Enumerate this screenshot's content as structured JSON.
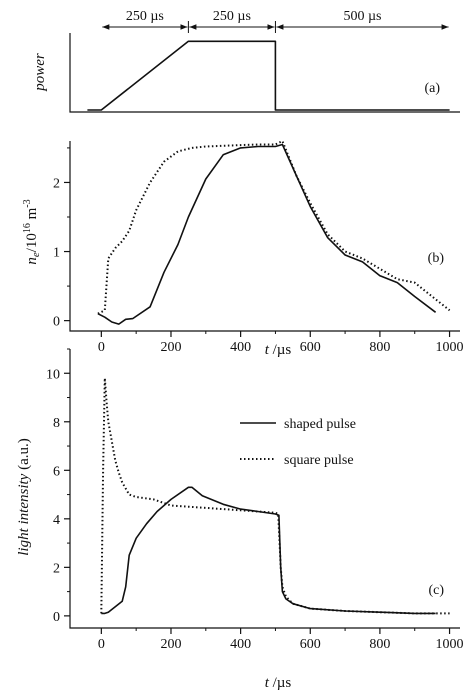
{
  "chart_data": [
    {
      "id": "a",
      "type": "line",
      "panel_label": "(a)",
      "ylabel": "power",
      "duration_labels": [
        "250 µs",
        "250 µs",
        "500 µs"
      ],
      "duration_boundaries_us": [
        0,
        250,
        500,
        1000
      ],
      "series": [
        {
          "style": "solid",
          "x": [
            -40,
            0,
            250,
            500,
            500,
            1000
          ],
          "y": [
            0,
            0,
            1,
            1,
            0,
            0
          ]
        }
      ],
      "ylim": [
        0,
        1.15
      ],
      "xlim": [
        -90,
        1030
      ]
    },
    {
      "id": "b",
      "type": "line",
      "panel_label": "(b)",
      "ylabel": "n",
      "ylabel_sub": "e",
      "ylabel_unit": "/10",
      "ylabel_exp": "16",
      "ylabel_tail": " m",
      "ylabel_tail_exp": "-3",
      "xlabel": "t",
      "xlabel_unit": " /µs",
      "x_ticks": [
        "0",
        "200",
        "400",
        "600",
        "800",
        "1000"
      ],
      "y_ticks": [
        "0",
        "1",
        "2"
      ],
      "xlim": [
        -90,
        1030
      ],
      "ylim": [
        -0.15,
        2.6
      ],
      "series": [
        {
          "style": "solid",
          "x": [
            -10,
            10,
            30,
            50,
            70,
            90,
            140,
            180,
            220,
            250,
            300,
            350,
            400,
            450,
            500,
            520,
            560,
            600,
            650,
            700,
            750,
            800,
            850,
            900,
            960
          ],
          "y": [
            0.1,
            0.05,
            -0.02,
            -0.05,
            0.02,
            0.03,
            0.2,
            0.7,
            1.1,
            1.5,
            2.05,
            2.4,
            2.5,
            2.52,
            2.52,
            2.55,
            2.1,
            1.65,
            1.2,
            0.95,
            0.85,
            0.65,
            0.55,
            0.35,
            0.12
          ]
        },
        {
          "style": "dotted",
          "x": [
            -10,
            10,
            20,
            40,
            60,
            80,
            100,
            140,
            180,
            220,
            260,
            300,
            350,
            400,
            450,
            500,
            520,
            560,
            600,
            650,
            700,
            750,
            800,
            850,
            900,
            950,
            1000
          ],
          "y": [
            0.1,
            0.15,
            0.9,
            1.05,
            1.15,
            1.3,
            1.6,
            2.0,
            2.3,
            2.45,
            2.5,
            2.52,
            2.53,
            2.54,
            2.55,
            2.55,
            2.6,
            2.1,
            1.7,
            1.25,
            1.0,
            0.9,
            0.75,
            0.6,
            0.55,
            0.35,
            0.15
          ]
        }
      ]
    },
    {
      "id": "c",
      "type": "line",
      "panel_label": "(c)",
      "ylabel": "light intensity",
      "ylabel_unit": " (a.u.)",
      "xlabel": "t",
      "xlabel_unit": " /µs",
      "x_ticks": [
        "0",
        "200",
        "400",
        "600",
        "800",
        "1000"
      ],
      "y_ticks": [
        "0",
        "2",
        "4",
        "6",
        "8",
        "10"
      ],
      "xlim": [
        -90,
        1030
      ],
      "ylim": [
        -0.5,
        11
      ],
      "legend": {
        "position": "center-right",
        "entries": [
          "shaped pulse",
          "square pulse"
        ]
      },
      "series": [
        {
          "name": "shaped pulse",
          "style": "solid",
          "x": [
            0,
            10,
            20,
            60,
            70,
            80,
            100,
            130,
            160,
            200,
            250,
            260,
            290,
            350,
            400,
            450,
            500,
            510,
            515,
            520,
            530,
            550,
            600,
            700,
            800,
            900,
            960
          ],
          "y": [
            0.1,
            0.1,
            0.15,
            0.6,
            1.2,
            2.5,
            3.2,
            3.8,
            4.3,
            4.8,
            5.3,
            5.3,
            4.95,
            4.6,
            4.4,
            4.3,
            4.2,
            4.15,
            2.0,
            1.0,
            0.7,
            0.5,
            0.3,
            0.2,
            0.15,
            0.1,
            0.1
          ]
        },
        {
          "name": "square pulse",
          "style": "dotted",
          "x": [
            0,
            5,
            10,
            15,
            20,
            30,
            40,
            50,
            60,
            80,
            100,
            150,
            200,
            250,
            300,
            350,
            400,
            450,
            500,
            508,
            512,
            515,
            520,
            530,
            550,
            600,
            700,
            800,
            900,
            1000
          ],
          "y": [
            0.1,
            6,
            9.8,
            8.8,
            8.0,
            7.2,
            6.4,
            5.9,
            5.5,
            5.0,
            4.9,
            4.8,
            4.55,
            4.5,
            4.45,
            4.4,
            4.35,
            4.3,
            4.25,
            4.2,
            3.0,
            2.0,
            1.2,
            0.8,
            0.5,
            0.3,
            0.2,
            0.15,
            0.1,
            0.1
          ]
        }
      ]
    }
  ]
}
